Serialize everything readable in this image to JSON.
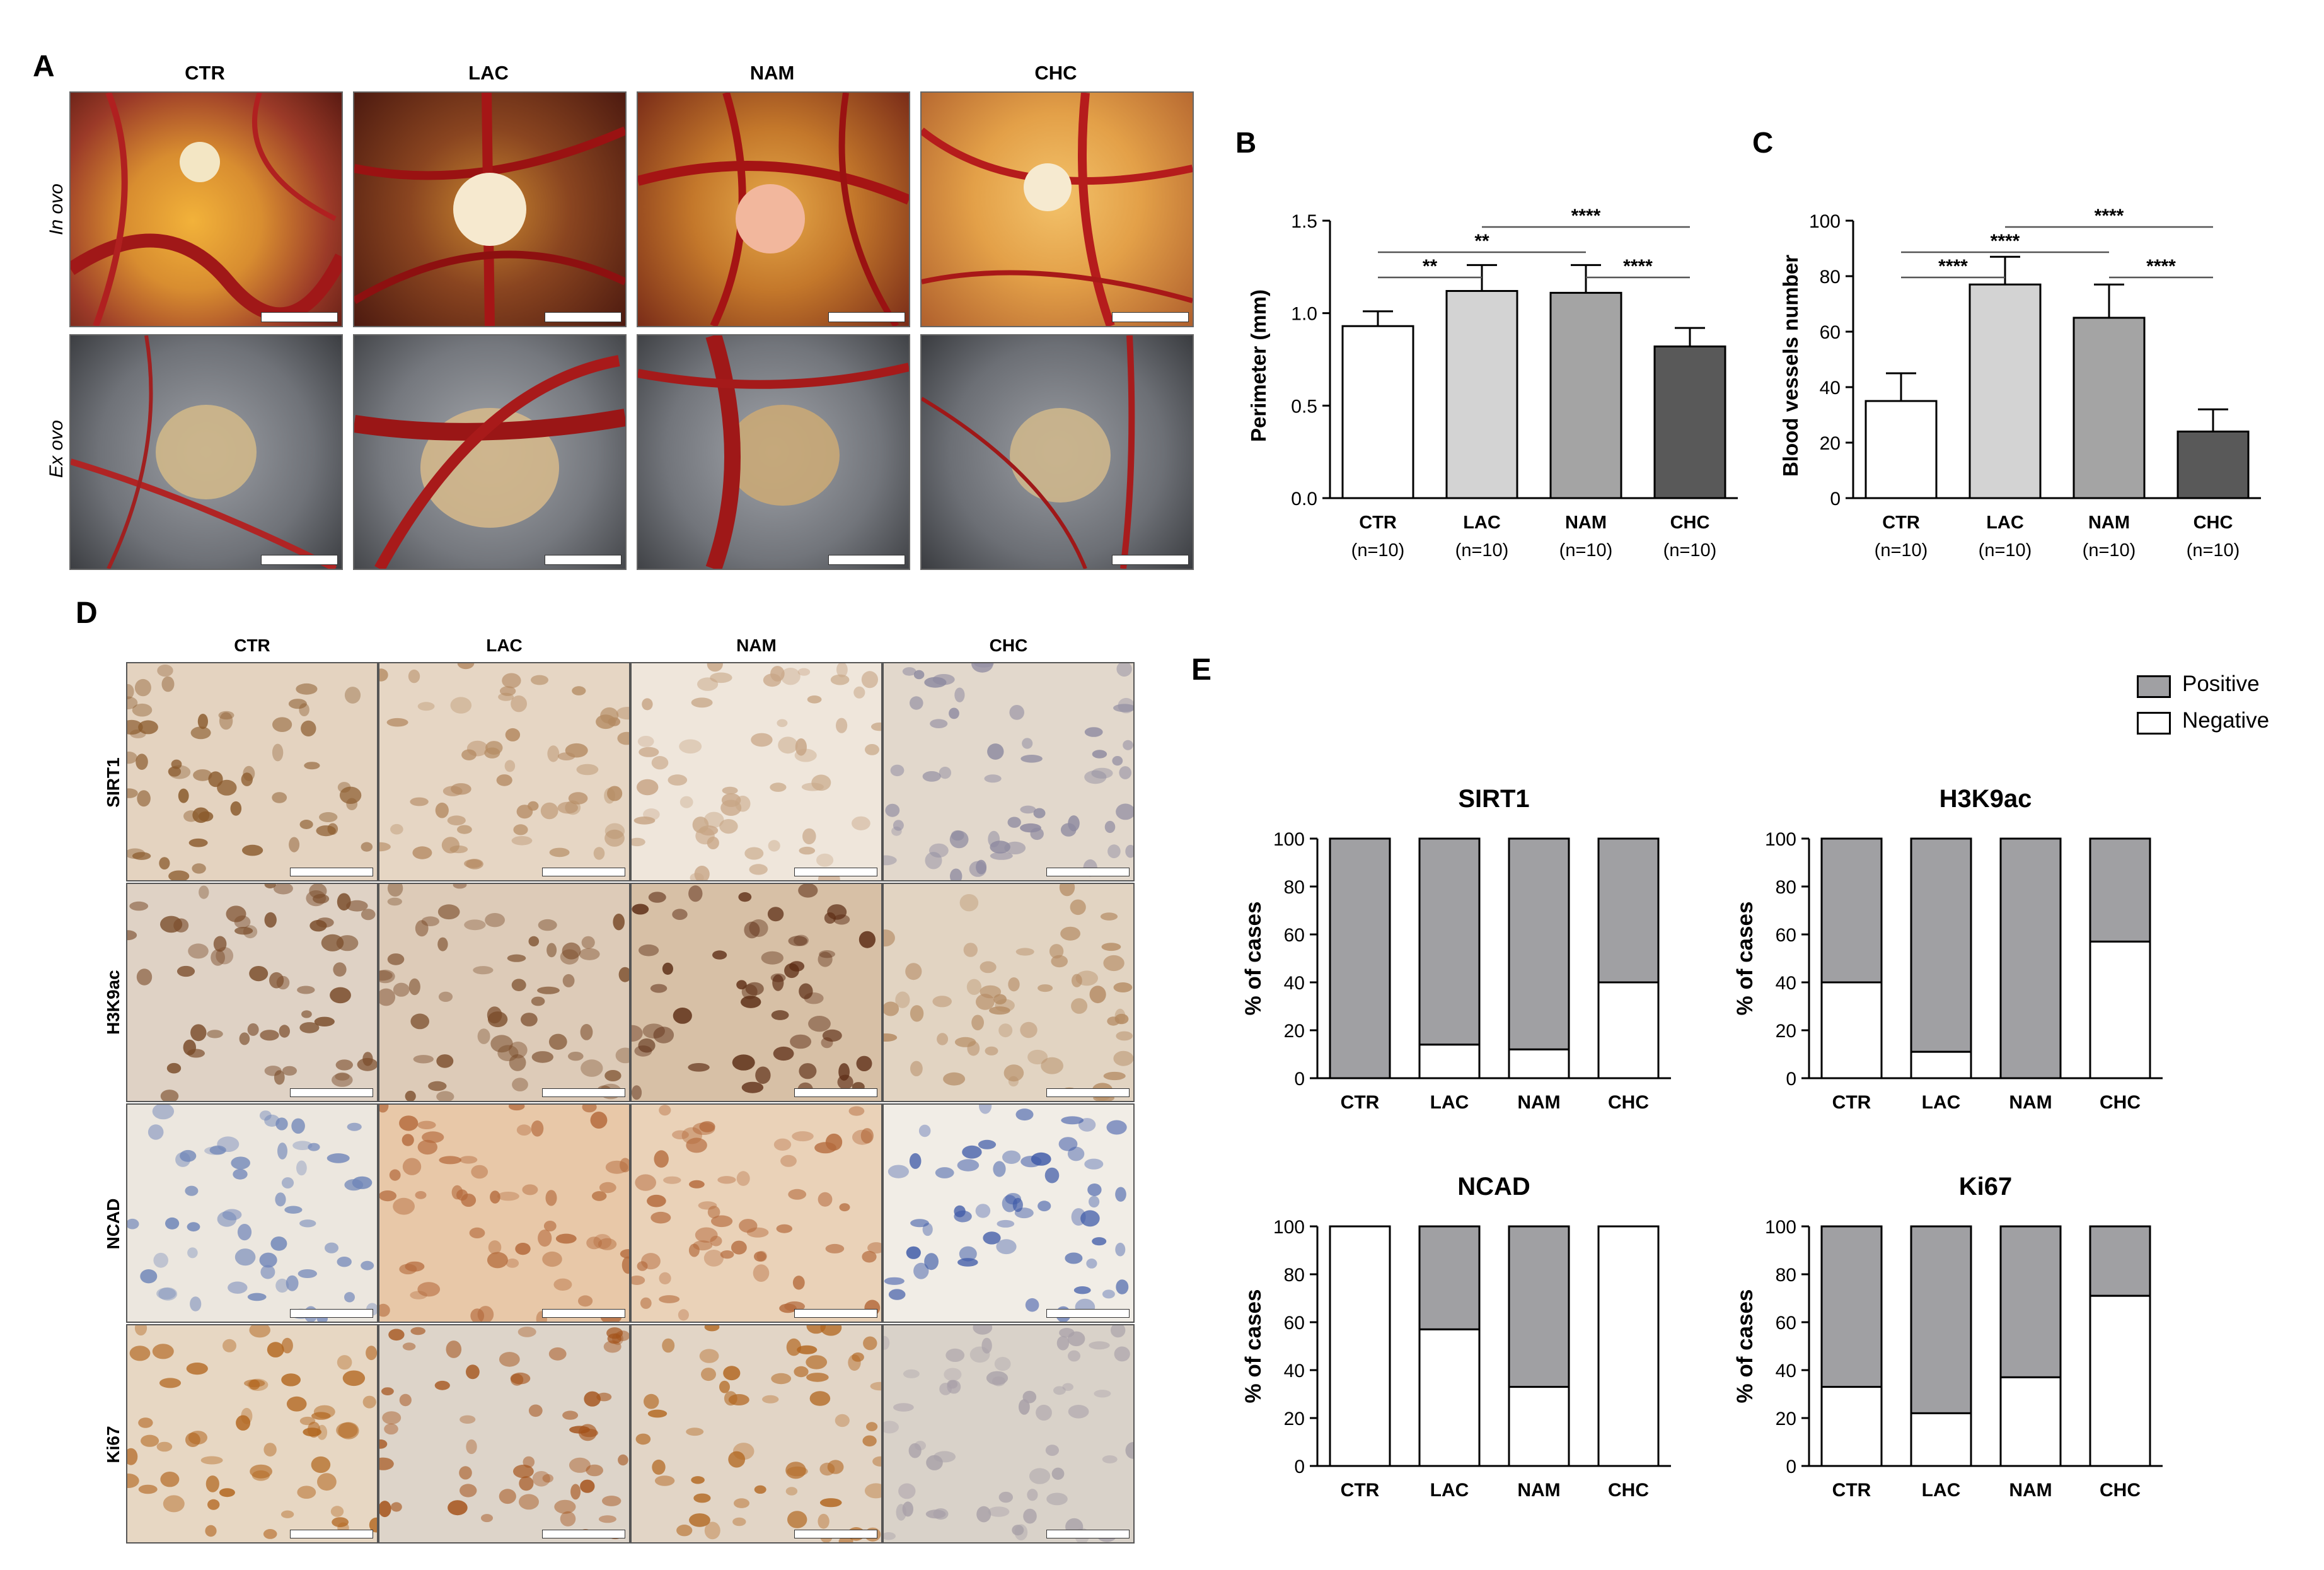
{
  "panelA": {
    "letter": "A",
    "columns": [
      "CTR",
      "LAC",
      "NAM",
      "CHC"
    ],
    "rows": [
      "In ovo",
      "Ex ovo"
    ]
  },
  "panelD": {
    "letter": "D",
    "columns": [
      "CTR",
      "LAC",
      "NAM",
      "CHC"
    ],
    "rows": [
      "SIRT1",
      "H3K9ac",
      "NCAD",
      "Ki67"
    ]
  },
  "panelE": {
    "letter": "E",
    "legend": [
      {
        "label": "Positive",
        "color": "#a0a0a3"
      },
      {
        "label": "Negative",
        "color": "#ffffff"
      }
    ]
  },
  "colors": {
    "CTR": "#ffffff",
    "LAC": "#d3d3d3",
    "NAM": "#a4a4a4",
    "CHC": "#595959",
    "positive": "#a0a0a3",
    "negative": "#ffffff"
  },
  "chart_data": [
    {
      "id": "B",
      "letter": "B",
      "type": "bar",
      "categories": [
        "CTR",
        "LAC",
        "NAM",
        "CHC"
      ],
      "n_labels": [
        "(n=10)",
        "(n=10)",
        "(n=10)",
        "(n=10)"
      ],
      "values": [
        0.93,
        1.12,
        1.11,
        0.82
      ],
      "errors": [
        0.08,
        0.14,
        0.15,
        0.1
      ],
      "ylabel": "Perimeter (mm)",
      "ylim": [
        0,
        1.5
      ],
      "yticks": [
        0.0,
        0.5,
        1.0,
        1.5
      ],
      "ytick_labels": [
        "0.0",
        "0.5",
        "1.0",
        "1.5"
      ],
      "significance": [
        {
          "from": 0,
          "to": 1,
          "label": "**"
        },
        {
          "from": 0,
          "to": 2,
          "label": "**"
        },
        {
          "from": 2,
          "to": 3,
          "label": "****"
        },
        {
          "from": 1,
          "to": 3,
          "label": "****"
        }
      ]
    },
    {
      "id": "C",
      "letter": "C",
      "type": "bar",
      "categories": [
        "CTR",
        "LAC",
        "NAM",
        "CHC"
      ],
      "n_labels": [
        "(n=10)",
        "(n=10)",
        "(n=10)",
        "(n=10)"
      ],
      "values": [
        35,
        77,
        65,
        24
      ],
      "errors": [
        10,
        10,
        12,
        8
      ],
      "ylabel": "Blood vessels number",
      "ylim": [
        0,
        100
      ],
      "yticks": [
        0,
        20,
        40,
        60,
        80,
        100
      ],
      "ytick_labels": [
        "0",
        "20",
        "40",
        "60",
        "80",
        "100"
      ],
      "significance": [
        {
          "from": 0,
          "to": 1,
          "label": "****"
        },
        {
          "from": 0,
          "to": 2,
          "label": "****"
        },
        {
          "from": 2,
          "to": 3,
          "label": "****"
        },
        {
          "from": 1,
          "to": 3,
          "label": "****"
        }
      ]
    },
    {
      "id": "SIRT1",
      "type": "bar",
      "stacked": true,
      "title": "SIRT1",
      "categories": [
        "CTR",
        "LAC",
        "NAM",
        "CHC"
      ],
      "negative": [
        0,
        14,
        12,
        40
      ],
      "ylabel": "% of cases",
      "ylim": [
        0,
        100
      ],
      "yticks": [
        0,
        20,
        40,
        60,
        80,
        100
      ],
      "ytick_labels": [
        "0",
        "20",
        "40",
        "60",
        "80",
        "100"
      ]
    },
    {
      "id": "H3K9ac",
      "type": "bar",
      "stacked": true,
      "title": "H3K9ac",
      "categories": [
        "CTR",
        "LAC",
        "NAM",
        "CHC"
      ],
      "negative": [
        40,
        11,
        0,
        57
      ],
      "ylabel": "% of cases",
      "ylim": [
        0,
        100
      ],
      "yticks": [
        0,
        20,
        40,
        60,
        80,
        100
      ],
      "ytick_labels": [
        "0",
        "20",
        "40",
        "60",
        "80",
        "100"
      ]
    },
    {
      "id": "NCAD",
      "type": "bar",
      "stacked": true,
      "title": "NCAD",
      "categories": [
        "CTR",
        "LAC",
        "NAM",
        "CHC"
      ],
      "negative": [
        100,
        57,
        33,
        100
      ],
      "ylabel": "% of cases",
      "ylim": [
        0,
        100
      ],
      "yticks": [
        0,
        20,
        40,
        60,
        80,
        100
      ],
      "ytick_labels": [
        "0",
        "20",
        "40",
        "60",
        "80",
        "100"
      ]
    },
    {
      "id": "Ki67",
      "type": "bar",
      "stacked": true,
      "title": "Ki67",
      "categories": [
        "CTR",
        "LAC",
        "NAM",
        "CHC"
      ],
      "negative": [
        33,
        22,
        37,
        71
      ],
      "ylabel": "% of cases",
      "ylim": [
        0,
        100
      ],
      "yticks": [
        0,
        20,
        40,
        60,
        80,
        100
      ],
      "ytick_labels": [
        "0",
        "20",
        "40",
        "60",
        "80",
        "100"
      ]
    }
  ]
}
